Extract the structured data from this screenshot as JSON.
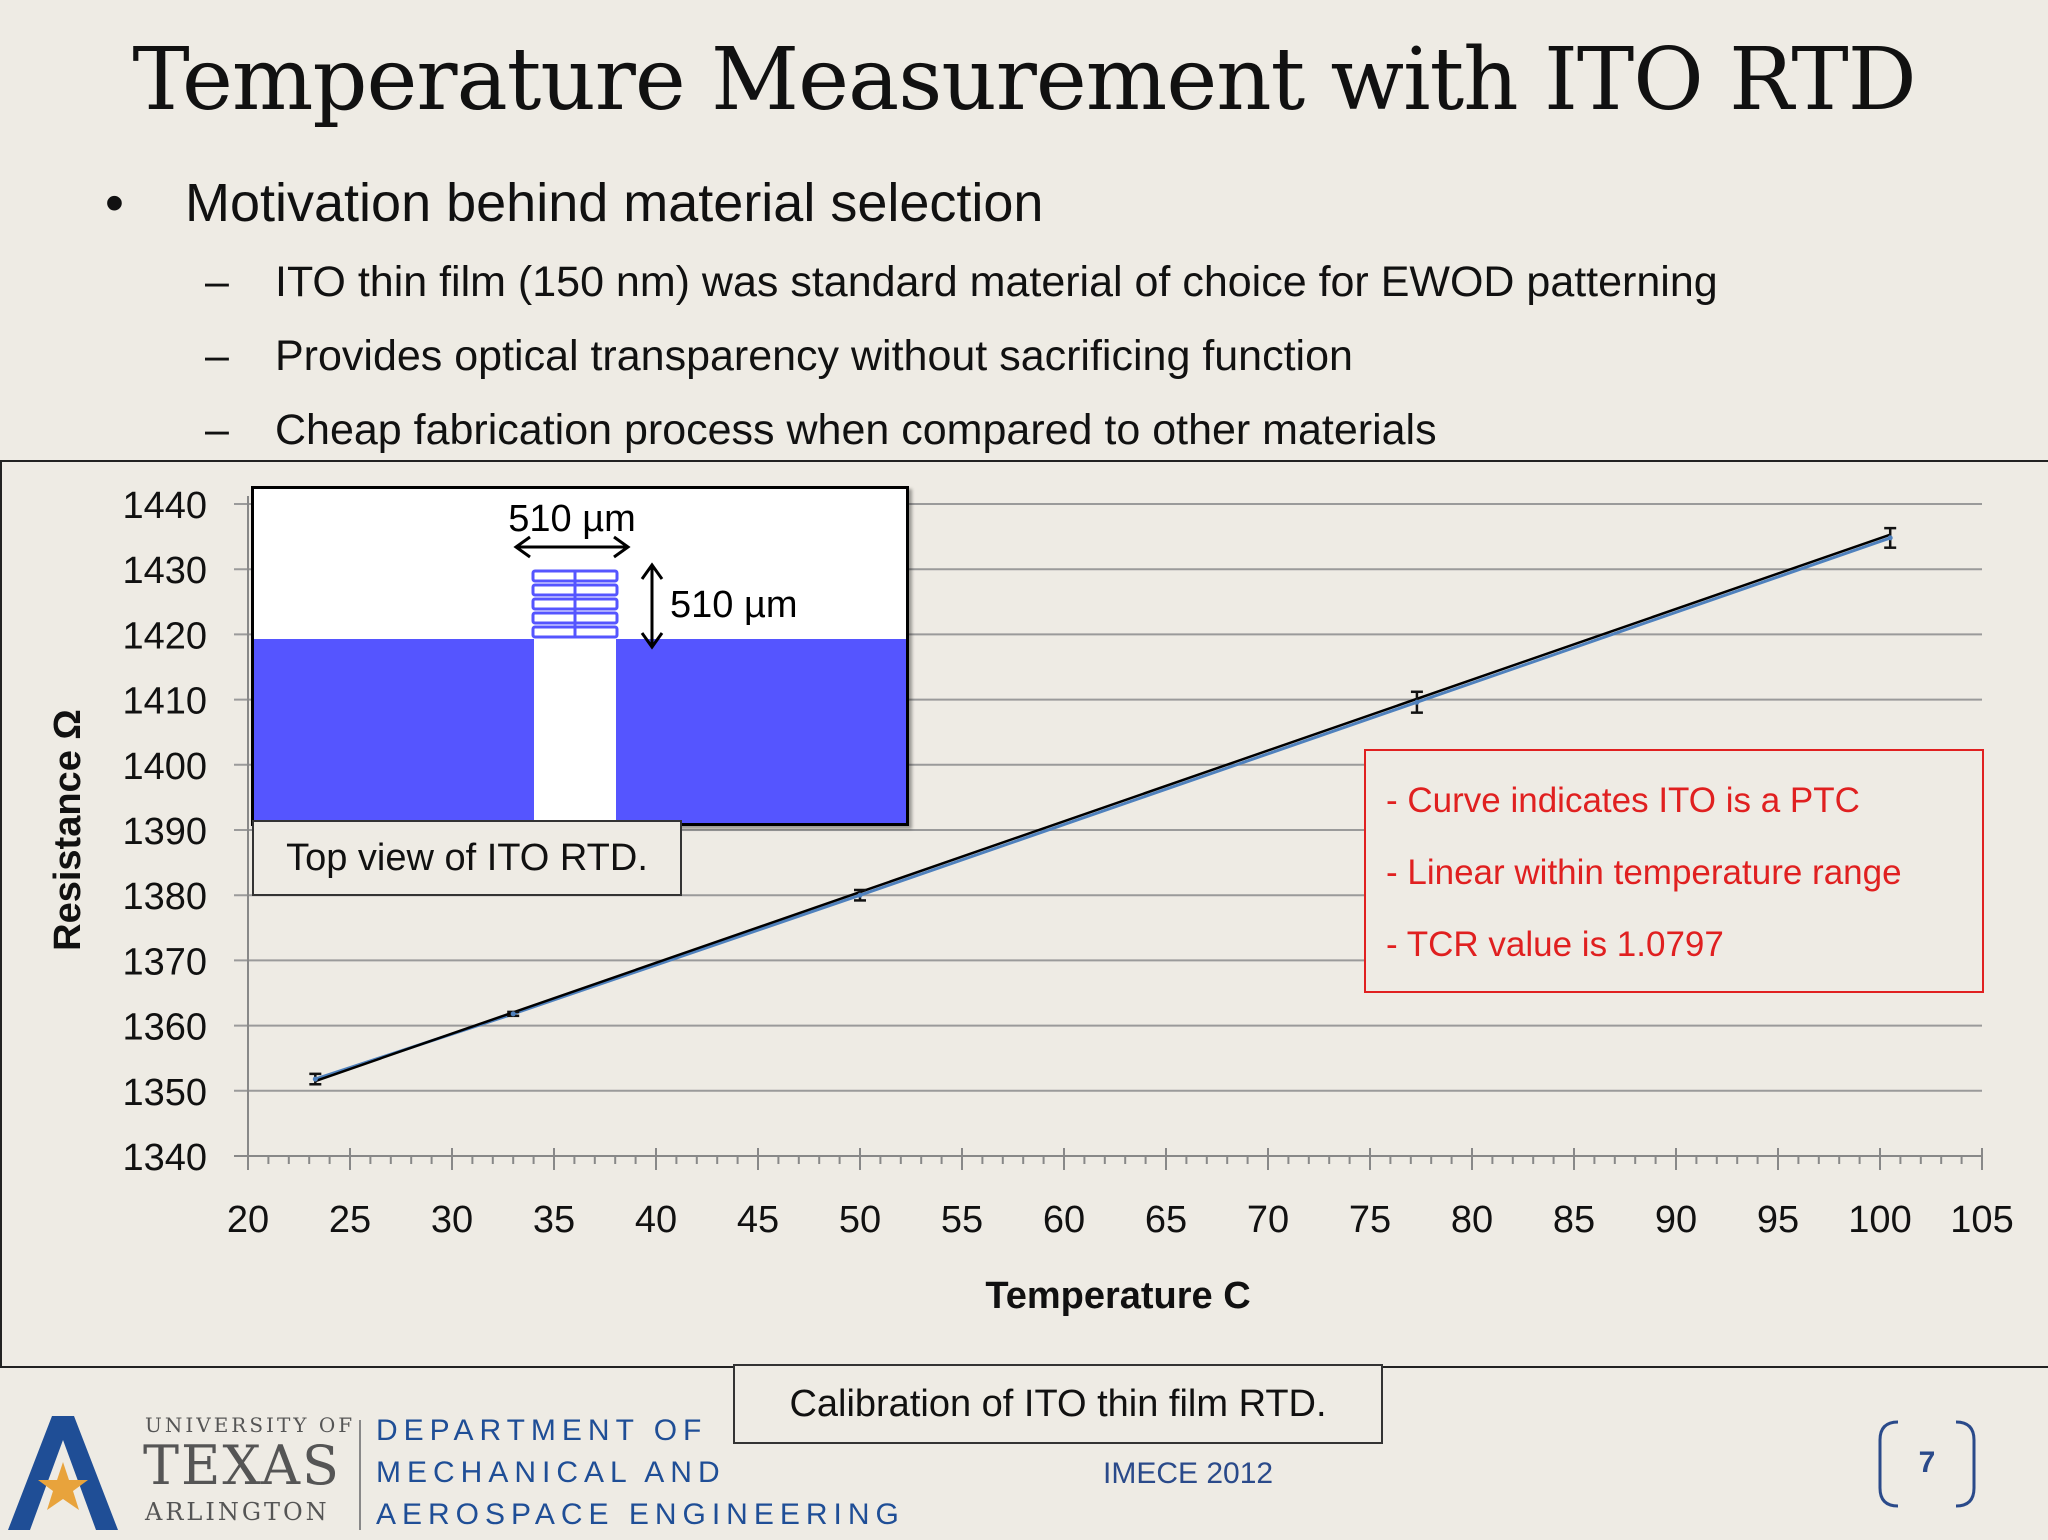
{
  "slide": {
    "title": "Temperature Measurement with ITO RTD",
    "bullet": "Motivation behind material selection",
    "bullet_marker": "•",
    "sub_marker": "–",
    "sub_bullets": [
      "ITO thin film (150 nm) was standard material of choice for EWOD patterning",
      "Provides optical transparency without sacrificing function",
      "Cheap fabrication process when compared to other materials"
    ]
  },
  "inset": {
    "width_label": "510 µm",
    "height_label": "510 µm",
    "caption": "Top view of ITO RTD.",
    "fill_color": "#5555ff"
  },
  "notes": [
    "- Curve indicates ITO is a PTC",
    "- Linear within temperature range",
    "- TCR value is 1.0797"
  ],
  "chart_caption": "Calibration of ITO thin film RTD.",
  "chart_data": {
    "type": "scatter",
    "xlabel": "Temperature   C",
    "ylabel": "Resistance Ω",
    "xlim": [
      20,
      105
    ],
    "ylim": [
      1340,
      1440
    ],
    "x_ticks": [
      20,
      25,
      30,
      35,
      40,
      45,
      50,
      55,
      60,
      65,
      70,
      75,
      80,
      85,
      90,
      95,
      100,
      105
    ],
    "y_ticks": [
      1340,
      1350,
      1360,
      1370,
      1380,
      1390,
      1400,
      1410,
      1420,
      1430,
      1440
    ],
    "grid": true,
    "points": [
      {
        "x": 23.3,
        "y": 1351.8,
        "err": 0.8
      },
      {
        "x": 33.0,
        "y": 1361.8,
        "err": 0.3
      },
      {
        "x": 50.0,
        "y": 1380.0,
        "err": 0.8
      },
      {
        "x": 77.3,
        "y": 1409.6,
        "err": 1.6
      },
      {
        "x": 100.5,
        "y": 1434.8,
        "err": 1.5
      }
    ],
    "trendline": {
      "x": [
        23.3,
        100.5
      ],
      "y": [
        1351.5,
        1435.3
      ]
    },
    "colors": {
      "data_line": "#4f81bd",
      "trendline": "#000000",
      "grid": "#9a9a9a"
    }
  },
  "footer": {
    "university_top": "UNIVERSITY OF",
    "university_name": "TEXAS",
    "university_bottom": "ARLINGTON",
    "dept_lines": [
      "DEPARTMENT OF",
      "MECHANICAL AND",
      "AEROSPACE ENGINEERING"
    ],
    "conference": "IMECE 2012",
    "page_number": "7",
    "brand_color": "#1f4e96"
  }
}
